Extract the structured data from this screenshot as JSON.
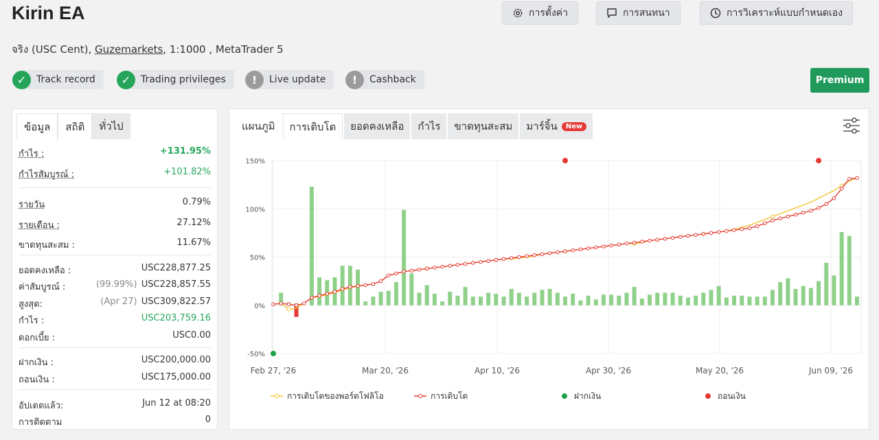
{
  "title": "Kirin EA",
  "subtitle": {
    "account_type": "จริง (USC Cent), ",
    "broker": "Guzemarkets",
    "rest": ", 1:1000 , MetaTrader 5"
  },
  "top_buttons": {
    "settings": "การตั้งค่า",
    "discussion": "การสนทนา",
    "custom_analysis": "การวิเคราะห์แบบกำหนดเอง"
  },
  "badges": {
    "track_record": "Track record",
    "trading_privileges": "Trading privileges",
    "live_update": "Live update",
    "cashback": "Cashback"
  },
  "premium": "Premium",
  "left_tabs": {
    "info": "ข้อมูล",
    "stats": "สถิติ",
    "general": "ทั่วไป"
  },
  "stats": {
    "gain_label": "กำไร :",
    "gain_value": "+131.95%",
    "abs_gain_label": "กำไรสัมบูรณ์ :",
    "abs_gain_value": "+101.82%",
    "daily_label": "รายวัน",
    "daily_value": "0.79%",
    "monthly_label": "รายเดือน :",
    "monthly_value": "27.12%",
    "drawdown_label": "ขาดทุนสะสม :",
    "drawdown_value": "11.67%",
    "balance_label": "ยอดคงเหลือ :",
    "balance_value": "USC228,877.25",
    "equity_label": "ค่าสัมบูรณ์ :",
    "equity_pct": "(99.99%)",
    "equity_value": "USC228,857.55",
    "highest_label": "สูงสุด:",
    "highest_date": "(Apr 27)",
    "highest_value": "USC309,822.57",
    "profit_label": "กำไร :",
    "profit_value": "USC203,759.16",
    "interest_label": "ดอกเบี้ย :",
    "interest_value": "USC0.00",
    "deposits_label": "ฝากเงิน :",
    "deposits_value": "USC200,000.00",
    "withdrawals_label": "ถอนเงิน :",
    "withdrawals_value": "USC175,000.00",
    "updated_label": "อัปเดตแล้ว:",
    "updated_value": "Jun 12 at 08:20",
    "tracking_label": "การติดตาม",
    "tracking_value": "0"
  },
  "chart_tabs": {
    "chart": "แผนภูมิ",
    "growth": "การเติบโต",
    "balance": "ยอดคงเหลือ",
    "profit": "กำไร",
    "drawdown": "ขาดทุนสะสม",
    "margin": "มาร์จิ้น",
    "new": "New"
  },
  "icons": {
    "settings": "gear-icon",
    "discussion": "chat-icon",
    "custom_analysis": "clock-icon",
    "check": "check-icon",
    "warning": "exclamation-icon",
    "chart_settings": "sliders-icon"
  },
  "colors": {
    "green": "#25a55a",
    "premium": "#1f9a5a",
    "growth_line": "#e53935",
    "portfolio_line": "#f4c430",
    "bars": "#8fd18a",
    "withdraw": "#e53935",
    "deposit": "#1aa34a"
  },
  "chart_data": {
    "type": "line",
    "ylim": [
      -50,
      150
    ],
    "yticks": [
      "150%",
      "100%",
      "50%",
      "0%",
      "-50%"
    ],
    "xticks": [
      "Feb 27, '26",
      "Mar 20, '26",
      "Apr 10, '26",
      "Apr 30, '26",
      "May 20, '26",
      "Jun 09, '26"
    ],
    "legend": [
      "การเติบโตของพอร์ตโฟลิโอ",
      "การเติบโต",
      "ฝากเงิน",
      "ถอนเงิน"
    ],
    "growth": [
      1,
      2,
      1,
      0,
      2,
      8,
      10,
      12,
      14,
      17,
      19,
      20,
      21,
      22,
      25,
      31,
      33,
      35,
      36,
      37,
      38,
      39,
      40,
      41,
      42,
      43,
      44,
      45,
      46,
      47,
      48,
      49,
      50,
      51,
      52,
      53,
      54,
      55,
      56,
      57,
      58,
      59,
      60,
      61,
      62,
      63,
      64,
      65,
      66,
      67,
      68,
      69,
      70,
      71,
      72,
      73,
      74,
      75,
      76,
      77,
      78,
      79,
      80,
      82,
      85,
      88,
      90,
      92,
      94,
      96,
      98,
      101,
      105,
      111,
      121,
      131,
      132
    ],
    "portfolio_growth": [
      1,
      2,
      -4,
      -3,
      2,
      8,
      9,
      11,
      13,
      16,
      18,
      20,
      21,
      22,
      25,
      31,
      33,
      35,
      36,
      37,
      38,
      39,
      40,
      41,
      42,
      43,
      44,
      45,
      46,
      47,
      48,
      48,
      49,
      50,
      51,
      53,
      54,
      55,
      56,
      57,
      58,
      59,
      60,
      61,
      62,
      63,
      64,
      64,
      65,
      67,
      68,
      69,
      70,
      71,
      72,
      73,
      74,
      75,
      76,
      77,
      79,
      81,
      83,
      86,
      89,
      92,
      95,
      98,
      101,
      104,
      107,
      111,
      115,
      119,
      124,
      129,
      132
    ],
    "daily_bars": [
      0,
      13,
      3,
      2,
      0,
      123,
      29,
      26,
      29,
      41,
      41,
      37,
      4,
      9,
      14,
      15,
      24,
      99,
      33,
      13,
      21,
      12,
      4,
      14,
      10,
      19,
      9,
      9,
      13,
      12,
      9,
      17,
      13,
      9,
      13,
      16,
      17,
      13,
      9,
      12,
      5,
      10,
      6,
      11,
      11,
      10,
      13,
      19,
      7,
      11,
      13,
      13,
      13,
      10,
      8,
      10,
      13,
      16,
      20,
      8,
      10,
      10,
      9,
      9,
      9,
      16,
      24,
      28,
      17,
      20,
      18,
      25,
      44,
      31,
      76,
      72,
      9
    ],
    "negative_bars": [
      {
        "index": 3,
        "value": -12
      }
    ],
    "deposits": [
      {
        "index": 0,
        "value": -50
      }
    ],
    "withdrawals": [
      {
        "index": 38,
        "value": 150
      },
      {
        "index": 71,
        "value": 150
      }
    ]
  }
}
